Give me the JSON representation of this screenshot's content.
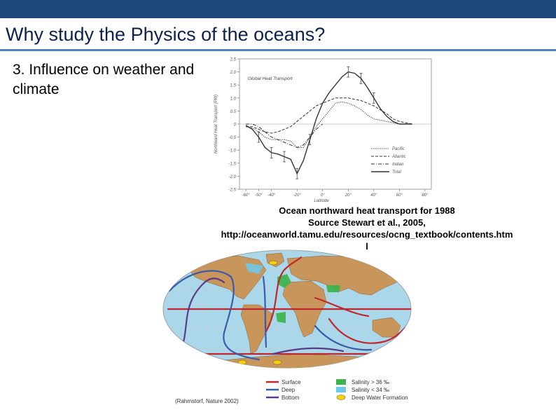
{
  "slide": {
    "title": "Why study the Physics of the oceans?",
    "subtitle": "3. Influence on weather and climate",
    "caption_lines": [
      "Ocean northward heat transport for 1988",
      "Source Stewart et al., 2005,",
      "http://oceanworld.tamu.edu/resources/ocng_textbook/contents.htm",
      "l"
    ]
  },
  "chart_data": {
    "type": "line",
    "title": "Global Heat Transport",
    "xlabel": "Latitude",
    "ylabel": "Northward Heat Transport (PW)",
    "x": [
      -60,
      -55,
      -50,
      -45,
      -40,
      -35,
      -30,
      -25,
      -20,
      -15,
      -10,
      -5,
      0,
      5,
      10,
      15,
      20,
      25,
      30,
      35,
      40,
      45,
      50,
      55,
      60,
      65,
      70
    ],
    "xticks": [
      "-60°",
      "-50°",
      "-40°",
      "-20°",
      "0°",
      "20°",
      "40°",
      "60°",
      "80°"
    ],
    "yticks": [
      "2.5",
      "2.0",
      "1.5",
      "1.0",
      "0.5",
      "0",
      "-0.5",
      "-1.0",
      "-1.5",
      "-2.0",
      "-2.5"
    ],
    "ylim": [
      -2.5,
      2.5
    ],
    "xlim": [
      -65,
      85
    ],
    "series": [
      {
        "name": "Pacific",
        "style": "dotted",
        "values": [
          -0.1,
          -0.15,
          -0.3,
          -0.5,
          -0.6,
          -0.6,
          -0.6,
          -0.65,
          -0.9,
          -0.9,
          -0.5,
          -0.1,
          0.2,
          0.5,
          0.8,
          0.85,
          0.8,
          0.7,
          0.55,
          0.35,
          0.2,
          0.15,
          0.1,
          0.05,
          0.0,
          0.0,
          0.0
        ]
      },
      {
        "name": "Atlantic",
        "style": "dashed",
        "values": [
          -0.1,
          -0.1,
          -0.2,
          -0.3,
          -0.35,
          -0.3,
          -0.2,
          -0.1,
          0.1,
          0.3,
          0.5,
          0.7,
          0.8,
          0.9,
          1.0,
          1.0,
          1.0,
          0.95,
          0.9,
          0.8,
          0.7,
          0.55,
          0.4,
          0.2,
          0.1,
          0.05,
          0.0
        ]
      },
      {
        "name": "Indian",
        "style": "dash-dot",
        "values": [
          0.0,
          0.0,
          -0.1,
          -0.3,
          -0.5,
          -0.6,
          -0.7,
          -0.8,
          -0.9,
          -0.8,
          -0.5,
          -0.2,
          0.0,
          null,
          null,
          null,
          null,
          null,
          null,
          null,
          null,
          null,
          null,
          null,
          null,
          null,
          null
        ]
      },
      {
        "name": "Total",
        "style": "solid",
        "values": [
          -0.05,
          -0.2,
          -0.5,
          -0.9,
          -1.1,
          -1.15,
          -1.25,
          -1.35,
          -1.9,
          -1.4,
          -0.6,
          0.2,
          0.8,
          1.2,
          1.5,
          1.8,
          2.0,
          1.95,
          1.75,
          1.4,
          1.0,
          0.6,
          0.3,
          0.1,
          0.0,
          0.0,
          0.0
        ]
      }
    ]
  },
  "map": {
    "credit": "(Rahmstorf, Nature 2002)",
    "legend": [
      {
        "label": "Surface",
        "color": "#c0262c",
        "kind": "line"
      },
      {
        "label": "Deep",
        "color": "#3a5ba8",
        "kind": "line"
      },
      {
        "label": "Bottom",
        "color": "#5a3a8a",
        "kind": "line"
      },
      {
        "label": "Salinity > 36 ‰",
        "color": "#3ab54a",
        "kind": "box"
      },
      {
        "label": "Salinity < 34 ‰",
        "color": "#6fc8e8",
        "kind": "box"
      },
      {
        "label": "Deep Water Formation",
        "color": "#f5d10a",
        "kind": "oval"
      }
    ],
    "colors": {
      "ocean": "#aad8ea",
      "land": "#c8955a",
      "border": "#9aa0a8"
    }
  }
}
